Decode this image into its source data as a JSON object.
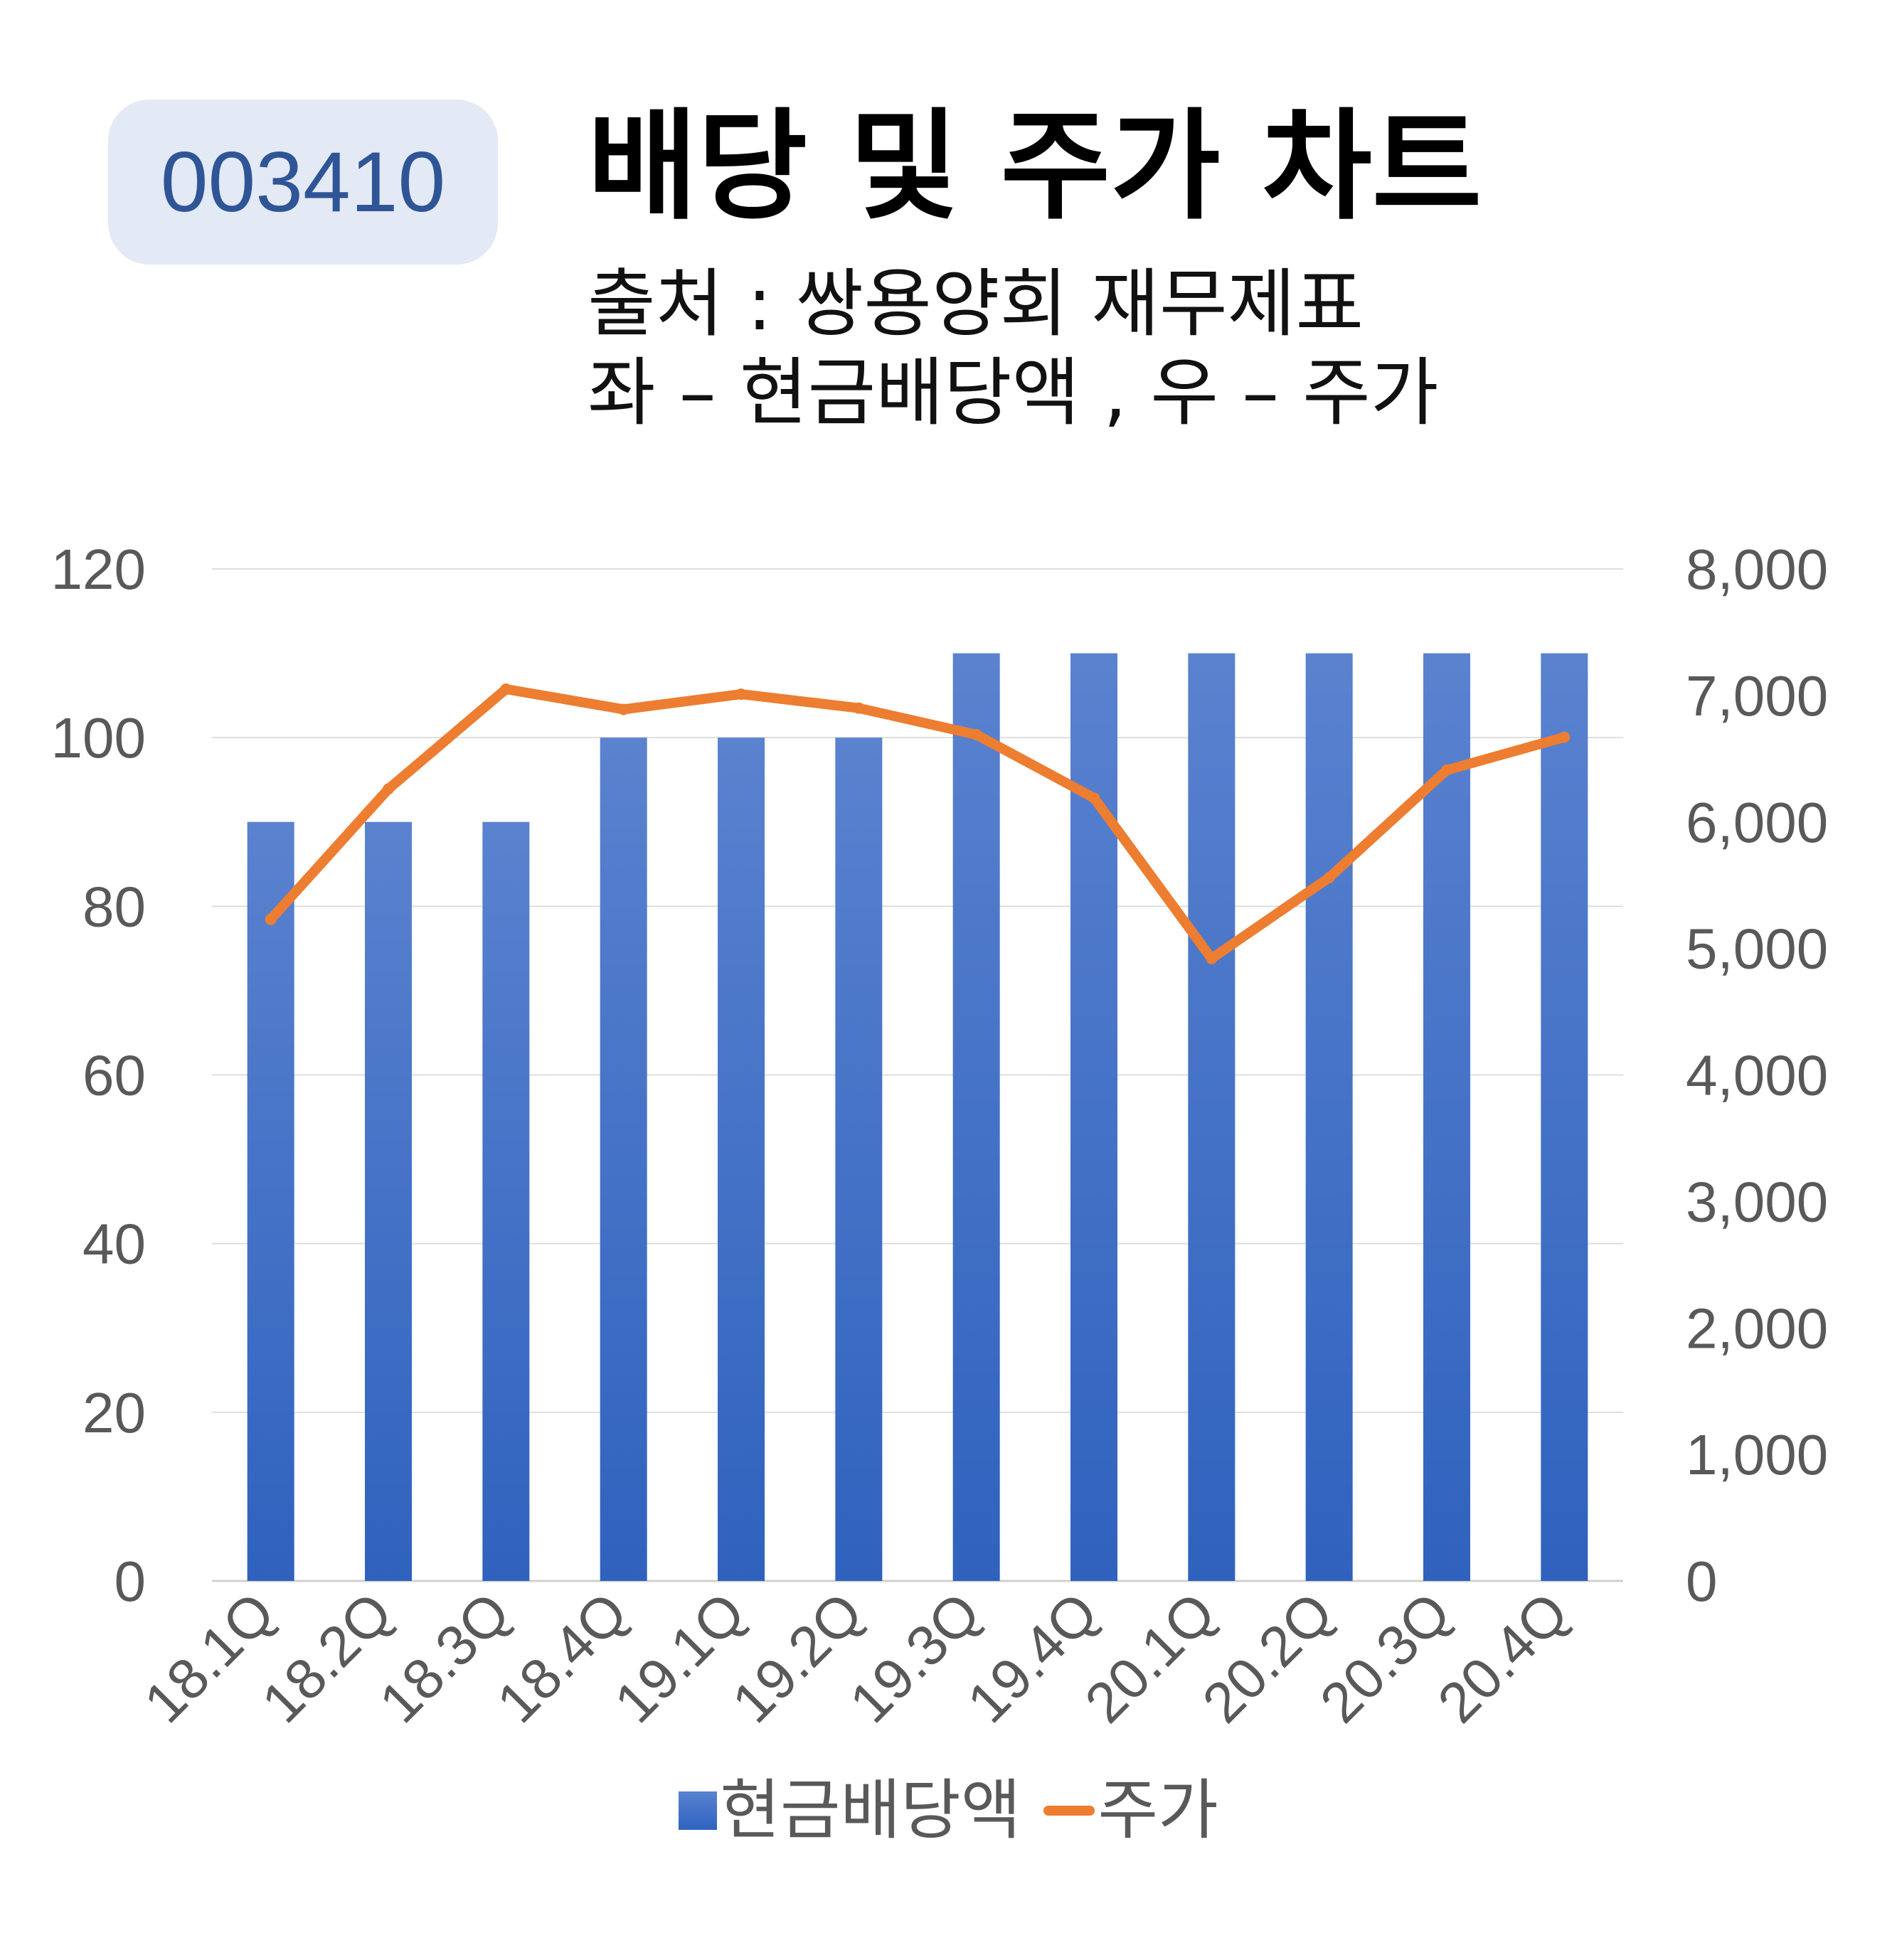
{
  "code": "003410",
  "title": "배당 및 주가 차트",
  "subtitle_source": "출처 : 쌍용양회 재무제표",
  "subtitle_axes": "좌 – 현금배당액 , 우 – 주가",
  "colors": {
    "bar": "#4472c4",
    "line": "#ed7d31",
    "badge_bg": "#e3e9f5",
    "badge_text": "#2f5597"
  },
  "chart_data": {
    "type": "bar",
    "categories": [
      "18.1Q",
      "18.2Q",
      "18.3Q",
      "18.4Q",
      "19.1Q",
      "19.2Q",
      "19.3Q",
      "19.4Q",
      "20.1Q",
      "20.2Q",
      "20.3Q",
      "20.4Q"
    ],
    "series": [
      {
        "name": "현금배당액",
        "type": "bar",
        "axis": "left",
        "values": [
          90,
          90,
          90,
          100,
          100,
          100,
          110,
          110,
          110,
          110,
          110,
          110
        ]
      },
      {
        "name": "주가",
        "type": "line",
        "axis": "right",
        "values": [
          5230,
          6260,
          7050,
          6890,
          7010,
          6900,
          6690,
          6190,
          4920,
          5560,
          6410,
          6670
        ]
      }
    ],
    "y_left": {
      "min": 0,
      "max": 120,
      "ticks": [
        "0",
        "20",
        "40",
        "60",
        "80",
        "100",
        "120"
      ]
    },
    "y_right": {
      "min": 0,
      "max": 8000,
      "ticks": [
        "0",
        "1,000",
        "2,000",
        "3,000",
        "4,000",
        "5,000",
        "6,000",
        "7,000",
        "8,000"
      ]
    },
    "grid": true,
    "legend": "bottom"
  }
}
